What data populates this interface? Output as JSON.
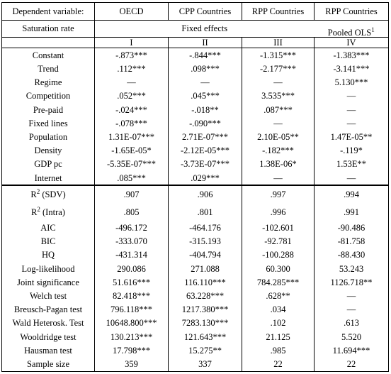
{
  "header": {
    "dependent_variable": "Dependent variable:",
    "columns": [
      "OECD",
      "CPP Countries",
      "RPP Countries",
      "RPP Countries"
    ]
  },
  "subheader": {
    "saturation_rate": "Saturation rate",
    "fixed_effects": "Fixed effects",
    "pooled_ols": "Pooled OLS",
    "pooled_ols_note": "1"
  },
  "model_numbers": [
    "I",
    "II",
    "III",
    "IV"
  ],
  "coefficient_rows": [
    {
      "label": "Constant",
      "values": [
        "-.873***",
        "-.844***",
        "-1.315***",
        "-1.383***"
      ]
    },
    {
      "label": "Trend",
      "values": [
        ".112***",
        ".098***",
        "-2.177***",
        "-3.141***"
      ]
    },
    {
      "label": "Regime",
      "values": [
        "—",
        "—",
        "—",
        "5.130***"
      ]
    },
    {
      "label": "Competition",
      "values": [
        ".052***",
        ".045***",
        "3.535***",
        "—"
      ]
    },
    {
      "label": "Pre-paid",
      "values": [
        "-.024***",
        "-.018**",
        ".087***",
        "—"
      ]
    },
    {
      "label": "Fixed lines",
      "values": [
        "-.078***",
        "-.090***",
        "—",
        "—"
      ]
    },
    {
      "label": "Population",
      "values": [
        "1.31E-07***",
        "2.71E-07***",
        "2.10E-05**",
        "1.47E-05**"
      ]
    },
    {
      "label": "Density",
      "values": [
        "-1.65E-05*",
        "-2.12E-05***",
        "-.182***",
        "-.119*"
      ]
    },
    {
      "label": "GDP pc",
      "values": [
        "-5.35E-07***",
        "-3.73E-07***",
        "1.38E-06*",
        "1.53E**"
      ]
    },
    {
      "label": "Internet",
      "values": [
        ".085***",
        ".029***",
        "—",
        "—"
      ]
    }
  ],
  "r2_rows": [
    {
      "label_main": "R",
      "label_sup": "2",
      "label_suffix": " (SDV)",
      "values": [
        ".907",
        ".906",
        ".997",
        ".994"
      ]
    },
    {
      "label_main": "R",
      "label_sup": "2",
      "label_suffix": " (Intra)",
      "values": [
        ".805",
        ".801",
        ".996",
        ".991"
      ]
    }
  ],
  "stat_rows": [
    {
      "label": "AIC",
      "values": [
        "-496.172",
        "-464.176",
        "-102.601",
        "-90.486"
      ]
    },
    {
      "label": "BIC",
      "values": [
        "-333.070",
        "-315.193",
        "-92.781",
        "-81.758"
      ]
    },
    {
      "label": "HQ",
      "values": [
        "-431.314",
        "-404.794",
        "-100.288",
        "-88.430"
      ]
    },
    {
      "label": "Log-likelihood",
      "values": [
        "290.086",
        "271.088",
        "60.300",
        "53.243"
      ]
    },
    {
      "label": "Joint significance",
      "values": [
        "51.616***",
        "116.110***",
        "784.285***",
        "1126.718**"
      ]
    },
    {
      "label": "Welch test",
      "values": [
        "82.418***",
        "63.228***",
        ".628**",
        "—"
      ]
    },
    {
      "label": "Breusch-Pagan test",
      "values": [
        "796.118***",
        "1217.380***",
        ".034",
        "—"
      ]
    },
    {
      "label": "Wald Heterosk. Test",
      "values": [
        "10648.800***",
        "7283.130***",
        ".102",
        ".613"
      ]
    },
    {
      "label": "Wooldridge test",
      "values": [
        "130.213***",
        "121.643***",
        "21.125",
        "5.520"
      ]
    },
    {
      "label": "Hausman test",
      "values": [
        "17.798***",
        "15.275**",
        ".985",
        "11.694***"
      ]
    },
    {
      "label": "Sample size",
      "values": [
        "359",
        "337",
        "22",
        "22"
      ]
    }
  ]
}
